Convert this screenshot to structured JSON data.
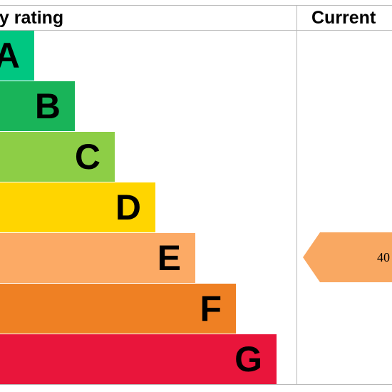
{
  "header": {
    "title": "ergy rating",
    "current_label": "Current"
  },
  "chart_data": {
    "type": "bar",
    "title": "ergy rating",
    "categories": [
      "A",
      "B",
      "C",
      "D",
      "E",
      "F",
      "G"
    ],
    "band_colors": [
      "#00c781",
      "#19b459",
      "#8dce46",
      "#ffd500",
      "#fcaa65",
      "#ef8023",
      "#e9153b"
    ],
    "current": {
      "label": "Current",
      "value": "40",
      "band": "E",
      "color": "#f9a862"
    }
  }
}
